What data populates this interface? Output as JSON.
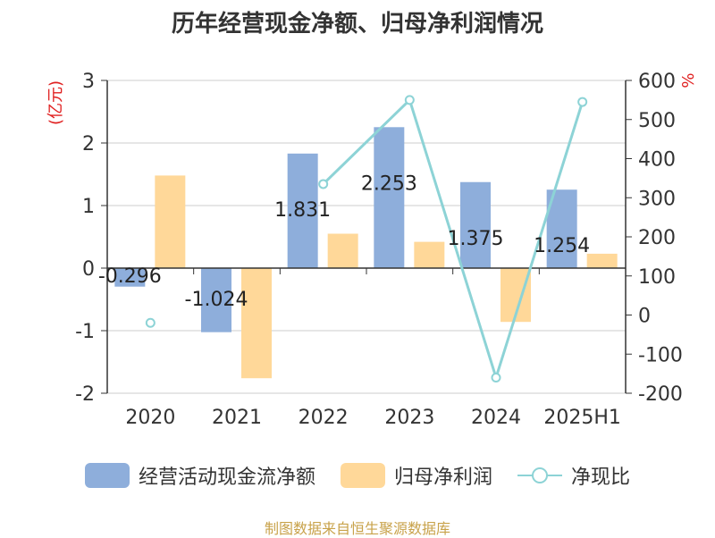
{
  "title": "历年经营现金净额、归母净利润情况",
  "source": "制图数据来自恒生聚源数据库",
  "colors": {
    "cash": "#8eaedb",
    "profit": "#ffd899",
    "ratio": "#8dd3d6",
    "unit": "#e02020"
  },
  "chart_data": {
    "type": "bar",
    "categories": [
      "2020",
      "2021",
      "2022",
      "2023",
      "2024",
      "2025H1"
    ],
    "series": [
      {
        "name": "经营活动现金流净额",
        "type": "bar",
        "axis": "left",
        "values": [
          -0.296,
          -1.024,
          1.831,
          2.253,
          1.375,
          1.254
        ],
        "labels": [
          "-0.296",
          "-1.024",
          "1.831",
          "2.253",
          "1.375",
          "1.254"
        ]
      },
      {
        "name": "归母净利润",
        "type": "bar",
        "axis": "left",
        "values": [
          1.48,
          -1.76,
          0.55,
          0.42,
          -0.86,
          0.23
        ]
      },
      {
        "name": "净现比",
        "type": "line",
        "axis": "right",
        "values": [
          -20,
          null,
          335,
          550,
          -160,
          545
        ]
      }
    ],
    "left_axis": {
      "label": "(亿元)",
      "ylim": [
        -2,
        3
      ],
      "ticks": [
        "-2",
        "-1",
        "0",
        "1",
        "2",
        "3"
      ]
    },
    "right_axis": {
      "label": "%",
      "ylim": [
        -200,
        600
      ],
      "ticks": [
        "-200",
        "-100",
        "0",
        "100",
        "200",
        "300",
        "400",
        "500",
        "600"
      ]
    },
    "grid": true,
    "legend": "bottom"
  }
}
